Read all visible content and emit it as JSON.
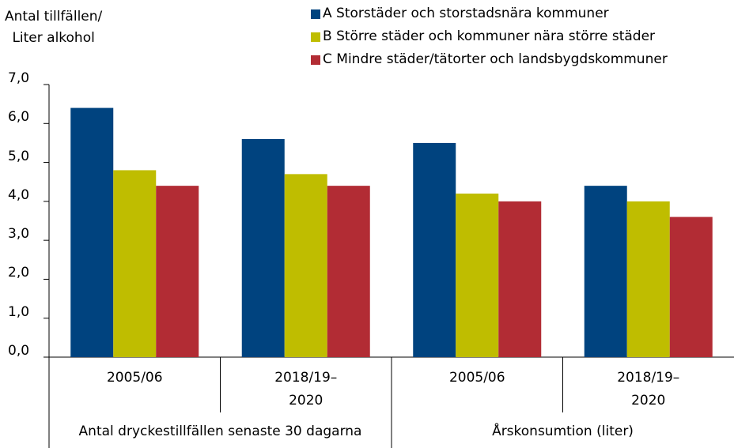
{
  "chart_data": {
    "type": "bar",
    "y_label": "Antal tillfällen/\nLiter alkohol",
    "categories": [
      "2005/06",
      "2018/19–\n2020",
      "2005/06",
      "2018/19–\n2020"
    ],
    "category_groups": [
      "Antal dryckestillfällen senaste 30 dagarna",
      "Årskonsumtion (liter)"
    ],
    "series": [
      {
        "name": "A Storstäder och storstadsnära kommuner",
        "color": "#00437f",
        "values": [
          6.4,
          5.6,
          5.5,
          4.4
        ]
      },
      {
        "name": "B Större städer och kommuner nära större städer",
        "color": "#bfbd00",
        "values": [
          4.8,
          4.7,
          4.2,
          4.0
        ]
      },
      {
        "name": "C Mindre städer/tätorter och landsbygdskommuner",
        "color": "#b22c34",
        "values": [
          4.4,
          4.4,
          4.0,
          3.6
        ]
      }
    ],
    "ylim": [
      0,
      7
    ],
    "yticks": [
      {
        "value": 0,
        "label": "0,0"
      },
      {
        "value": 1,
        "label": "1,0"
      },
      {
        "value": 2,
        "label": "2,0"
      },
      {
        "value": 3,
        "label": "3,0"
      },
      {
        "value": 4,
        "label": "4,0"
      },
      {
        "value": 5,
        "label": "5,0"
      },
      {
        "value": 6,
        "label": "6,0"
      },
      {
        "value": 7,
        "label": "7,0"
      }
    ],
    "grid": false,
    "legend": "top-right"
  }
}
